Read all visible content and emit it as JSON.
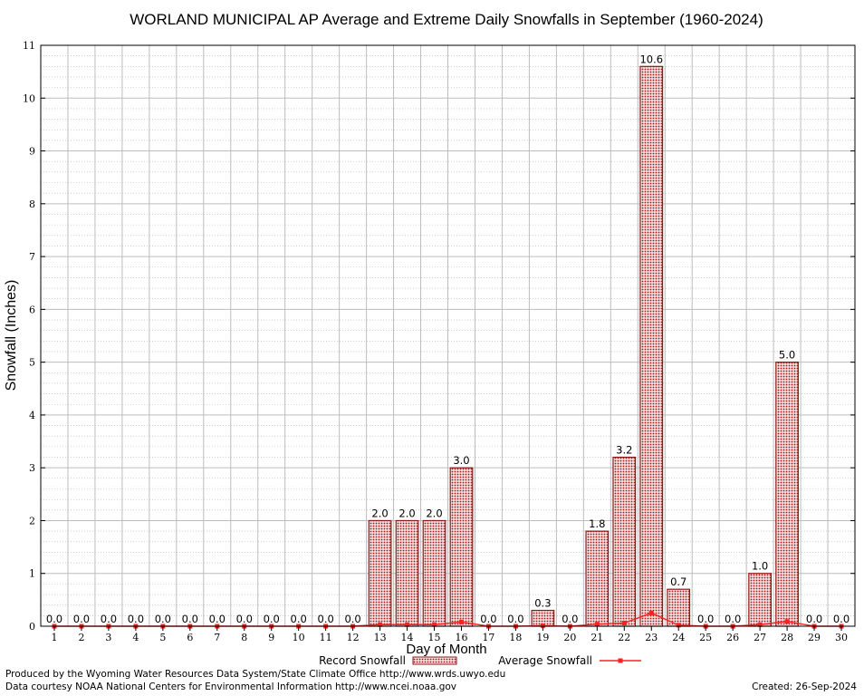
{
  "chart_data": {
    "type": "bar",
    "title": "WORLAND MUNICIPAL AP Average and Extreme Daily Snowfalls in September (1960-2024)",
    "xlabel": "Day of Month",
    "ylabel": "Snowfall (Inches)",
    "ylim": [
      0,
      11
    ],
    "yticks": [
      "0",
      "1",
      "2",
      "3",
      "4",
      "5",
      "6",
      "7",
      "8",
      "9",
      "10",
      "11"
    ],
    "categories": [
      "1",
      "2",
      "3",
      "4",
      "5",
      "6",
      "7",
      "8",
      "9",
      "10",
      "11",
      "12",
      "13",
      "14",
      "15",
      "16",
      "17",
      "18",
      "19",
      "20",
      "21",
      "22",
      "23",
      "24",
      "25",
      "26",
      "27",
      "28",
      "29",
      "30"
    ],
    "series": [
      {
        "name": "Record Snowfall",
        "type": "bar",
        "color": "#b22222",
        "values": [
          0,
          0,
          0,
          0,
          0,
          0,
          0,
          0,
          0,
          0,
          0,
          0,
          2.0,
          2.0,
          2.0,
          3.0,
          0,
          0,
          0.3,
          0,
          1.8,
          3.2,
          10.6,
          0.7,
          0,
          0,
          1.0,
          5.0,
          0,
          0
        ],
        "labels": [
          "0.0",
          "0.0",
          "0.0",
          "0.0",
          "0.0",
          "0.0",
          "0.0",
          "0.0",
          "0.0",
          "0.0",
          "0.0",
          "0.0",
          "2.0",
          "2.0",
          "2.0",
          "3.0",
          "0.0",
          "0.0",
          "0.3",
          "0.0",
          "1.8",
          "3.2",
          "10.6",
          "0.7",
          "0.0",
          "0.0",
          "1.0",
          "5.0",
          "0.0",
          "0.0"
        ]
      },
      {
        "name": "Average Snowfall",
        "type": "line",
        "color": "#ff2020",
        "values": [
          0,
          0,
          0,
          0,
          0,
          0,
          0,
          0,
          0,
          0,
          0,
          0,
          0.03,
          0.03,
          0.03,
          0.08,
          0,
          0,
          0.01,
          0,
          0.04,
          0.06,
          0.25,
          0.02,
          0,
          0,
          0.03,
          0.09,
          0,
          0
        ]
      }
    ],
    "grid": true,
    "legend_position": "bottom"
  },
  "footer": {
    "produced_by": "Produced by the Wyoming Water Resources Data System/State Climate Office http://www.wrds.uwyo.edu",
    "data_courtesy": "Data courtesy NOAA National Centers for Environmental Information http://www.ncei.noaa.gov",
    "created": "Created: 26-Sep-2024"
  }
}
